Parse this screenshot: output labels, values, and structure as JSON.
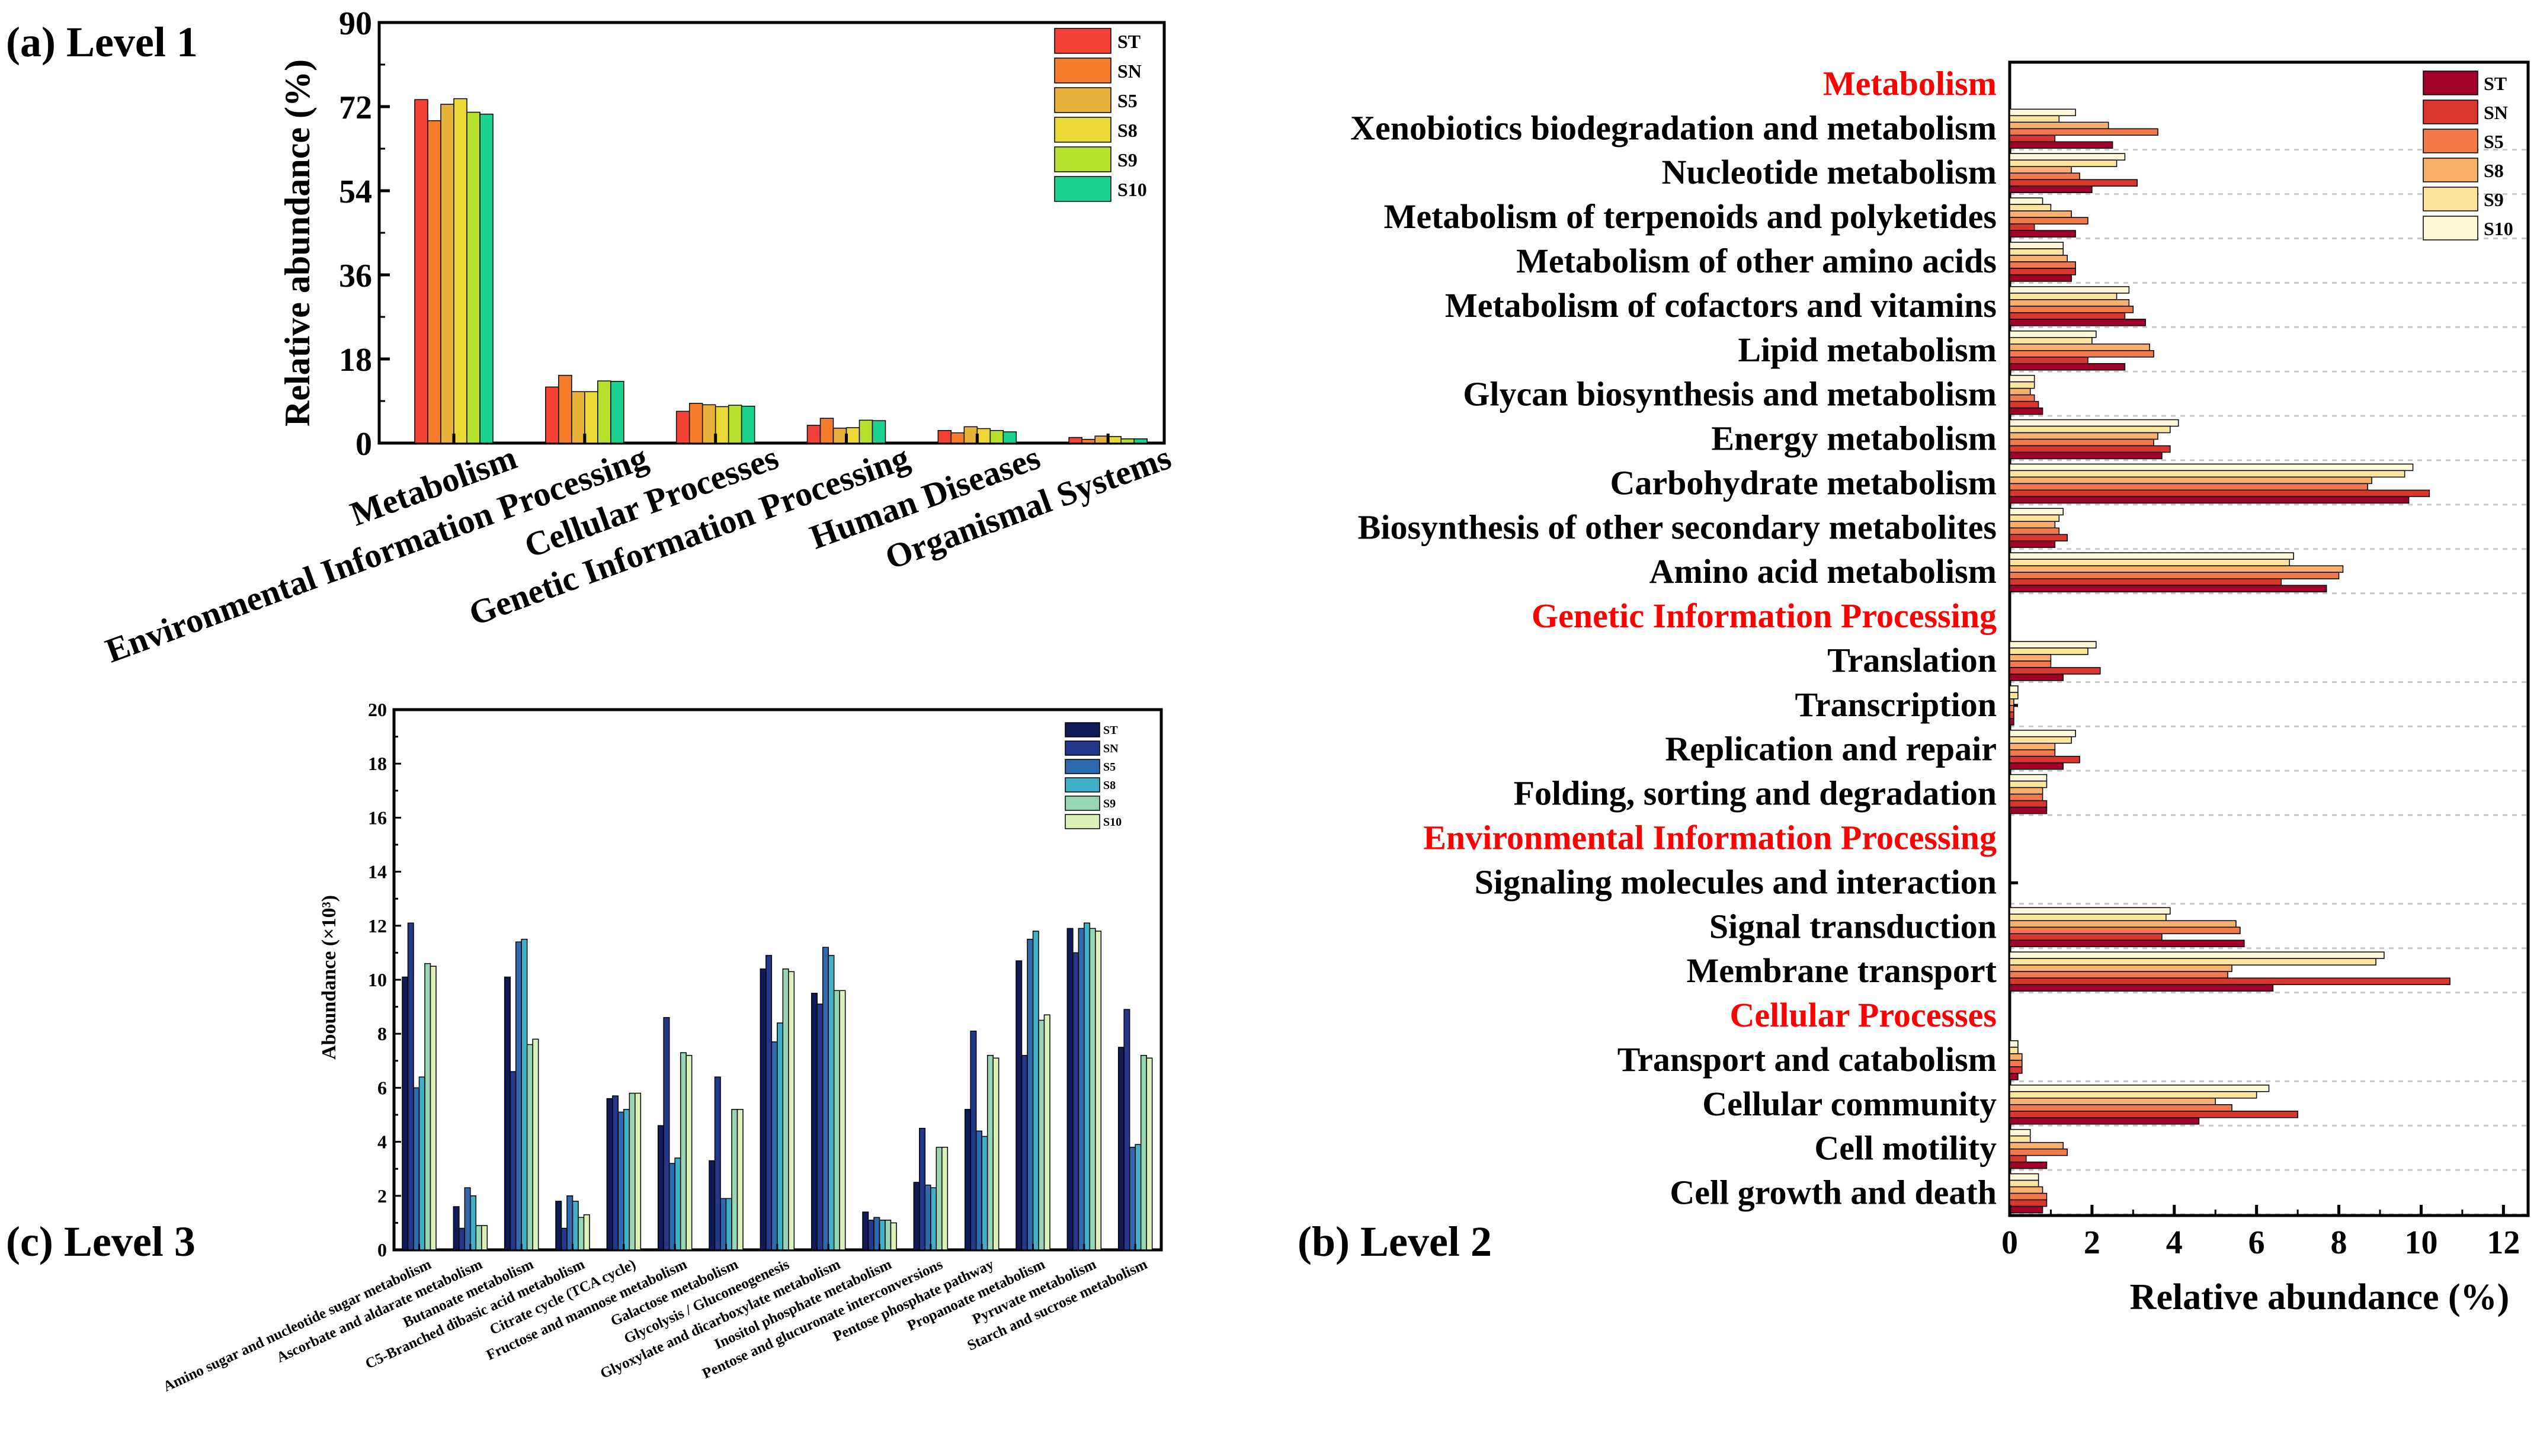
{
  "panel_labels": {
    "a": "(a) Level 1",
    "b": "(b) Level 2",
    "c": "(c) Level 3"
  },
  "colors": {
    "level1": [
      "#f44336",
      "#f57c2a",
      "#e8b13a",
      "#ecd835",
      "#b6df2e",
      "#1bd38e"
    ],
    "level2": [
      "#a1002b",
      "#d9362e",
      "#f27a4a",
      "#f8b06c",
      "#fde59b",
      "#fff8d6"
    ],
    "level3": [
      "#101a57",
      "#23388a",
      "#2f6ab1",
      "#3fb0c8",
      "#96d6b3",
      "#daf2b8"
    ]
  },
  "chart_data": [
    {
      "id": "level1",
      "type": "bar",
      "title": "(a) Level 1",
      "xlabel": "",
      "ylabel": "Relative abundance (%)",
      "ylim": [
        0,
        90
      ],
      "yticks": [
        "0",
        "18",
        "36",
        "54",
        "72",
        "90"
      ],
      "legend": "top-right",
      "categories": [
        "Metabolism",
        "Environmental Information Processing",
        "Cellular Processes",
        "Genetic Information Processing",
        "Human Diseases",
        "Organismal Systems"
      ],
      "series": [
        {
          "name": "ST",
          "values": [
            73.5,
            12.0,
            6.8,
            3.8,
            2.7,
            1.2
          ]
        },
        {
          "name": "SN",
          "values": [
            69.0,
            14.5,
            8.5,
            5.3,
            2.2,
            0.8
          ]
        },
        {
          "name": "S5",
          "values": [
            72.5,
            11.0,
            8.2,
            3.2,
            3.5,
            1.5
          ]
        },
        {
          "name": "S8",
          "values": [
            73.7,
            11.0,
            7.8,
            3.3,
            3.1,
            1.4
          ]
        },
        {
          "name": "S9",
          "values": [
            70.8,
            13.3,
            8.1,
            4.9,
            2.7,
            0.9
          ]
        },
        {
          "name": "S10",
          "values": [
            70.4,
            13.2,
            7.9,
            4.8,
            2.4,
            0.9
          ]
        }
      ]
    },
    {
      "id": "level2",
      "type": "bar",
      "orientation": "horizontal",
      "title": "(b) Level 2",
      "xlabel": "Relative abundance (%)",
      "ylabel": "",
      "xlim": [
        0,
        12.6
      ],
      "xticks": [
        "0",
        "2",
        "4",
        "6",
        "8",
        "10",
        "12"
      ],
      "legend": "top-right",
      "series_names": [
        "ST",
        "SN",
        "S5",
        "S8",
        "S9",
        "S10"
      ],
      "rows": [
        {
          "kind": "header",
          "label": "Metabolism"
        },
        {
          "kind": "cat",
          "label": "Xenobiotics biodegradation and metabolism",
          "values": [
            2.5,
            1.1,
            3.6,
            2.4,
            1.2,
            1.6
          ]
        },
        {
          "kind": "cat",
          "label": "Nucleotide metabolism",
          "values": [
            2.0,
            3.1,
            1.7,
            1.5,
            2.6,
            2.8
          ]
        },
        {
          "kind": "cat",
          "label": "Metabolism of terpenoids and polyketides",
          "values": [
            1.6,
            0.6,
            1.9,
            1.5,
            1.0,
            0.8
          ]
        },
        {
          "kind": "cat",
          "label": "Metabolism of other amino acids",
          "values": [
            1.5,
            1.6,
            1.6,
            1.4,
            1.3,
            1.3
          ]
        },
        {
          "kind": "cat",
          "label": "Metabolism of cofactors and vitamins",
          "values": [
            3.3,
            2.8,
            3.0,
            2.9,
            2.6,
            2.9
          ]
        },
        {
          "kind": "cat",
          "label": "Lipid metabolism",
          "values": [
            2.8,
            1.9,
            3.5,
            3.4,
            2.0,
            2.1
          ]
        },
        {
          "kind": "cat",
          "label": "Glycan biosynthesis and metabolism",
          "values": [
            0.8,
            0.7,
            0.6,
            0.5,
            0.6,
            0.6
          ]
        },
        {
          "kind": "cat",
          "label": "Energy metabolism",
          "values": [
            3.7,
            3.9,
            3.5,
            3.6,
            3.9,
            4.1
          ]
        },
        {
          "kind": "cat",
          "label": "Carbohydrate metabolism",
          "values": [
            9.7,
            10.2,
            8.7,
            8.8,
            9.6,
            9.8
          ]
        },
        {
          "kind": "cat",
          "label": "Biosynthesis of other secondary metabolites",
          "values": [
            1.1,
            1.4,
            1.2,
            1.1,
            1.2,
            1.3
          ]
        },
        {
          "kind": "cat",
          "label": "Amino acid metabolism",
          "values": [
            7.7,
            6.6,
            8.0,
            8.1,
            6.8,
            6.9
          ]
        },
        {
          "kind": "header",
          "label": "Genetic Information Processing"
        },
        {
          "kind": "cat",
          "label": "Translation",
          "values": [
            1.3,
            2.2,
            1.0,
            1.0,
            1.9,
            2.1
          ]
        },
        {
          "kind": "cat",
          "label": "Transcription",
          "values": [
            0.1,
            0.1,
            0.1,
            0.1,
            0.2,
            0.2
          ]
        },
        {
          "kind": "cat",
          "label": "Replication and repair",
          "values": [
            1.3,
            1.7,
            1.1,
            1.1,
            1.5,
            1.6
          ]
        },
        {
          "kind": "cat",
          "label": "Folding, sorting and degradation",
          "values": [
            0.9,
            0.9,
            0.8,
            0.8,
            0.9,
            0.9
          ]
        },
        {
          "kind": "header",
          "label": "Environmental Information Processing"
        },
        {
          "kind": "cat",
          "label": "Signaling molecules and interaction",
          "values": [
            0,
            0,
            0,
            0,
            0,
            0
          ]
        },
        {
          "kind": "cat",
          "label": "Signal transduction",
          "values": [
            5.7,
            3.7,
            5.6,
            5.5,
            3.8,
            3.9
          ]
        },
        {
          "kind": "cat",
          "label": "Membrane transport",
          "values": [
            6.4,
            10.7,
            5.3,
            5.4,
            8.9,
            9.1
          ]
        },
        {
          "kind": "header",
          "label": "Cellular Processes"
        },
        {
          "kind": "cat",
          "label": "Transport and catabolism",
          "values": [
            0.2,
            0.3,
            0.3,
            0.3,
            0.2,
            0.2
          ]
        },
        {
          "kind": "cat",
          "label": "Cellular community",
          "values": [
            4.6,
            7.0,
            5.4,
            5.0,
            6.0,
            6.3
          ]
        },
        {
          "kind": "cat",
          "label": "Cell motility",
          "values": [
            0.9,
            0.4,
            1.4,
            1.3,
            0.5,
            0.5
          ]
        },
        {
          "kind": "cat",
          "label": "Cell growth and death",
          "values": [
            0.8,
            0.9,
            0.9,
            0.8,
            0.7,
            0.7
          ]
        }
      ]
    },
    {
      "id": "level3",
      "type": "bar",
      "title": "(c) Level 3",
      "xlabel": "",
      "ylabel": "Aboundance (×10³)",
      "ylim": [
        0,
        20
      ],
      "yticks": [
        "0",
        "2",
        "4",
        "6",
        "8",
        "10",
        "12",
        "14",
        "16",
        "18",
        "20"
      ],
      "legend": "top-right",
      "categories": [
        "Amino sugar and nucleotide sugar metabolism",
        "Ascorbate and aldarate metabolism",
        "Butanoate metabolism",
        "C5-Branched dibasic acid metabolism",
        "Citrate cycle (TCA cycle)",
        "Fructose and mannose metabolism",
        "Galactose metabolism",
        "Glycolysis / Gluconeogenesis",
        "Glyoxylate and dicarboxylate metabolism",
        "Inositol phosphate metabolism",
        "Pentose and glucuronate interconversions",
        "Pentose phosphate pathway",
        "Propanoate metabolism",
        "Pyruvate metabolism",
        "Starch and sucrose metabolism"
      ],
      "series": [
        {
          "name": "ST",
          "values": [
            10.1,
            1.6,
            10.1,
            1.8,
            5.6,
            4.6,
            3.3,
            10.4,
            9.5,
            1.4,
            2.5,
            5.2,
            10.7,
            11.9,
            7.5
          ]
        },
        {
          "name": "SN",
          "values": [
            12.1,
            0.8,
            6.6,
            0.8,
            5.7,
            8.6,
            6.4,
            10.9,
            9.1,
            1.1,
            4.5,
            8.1,
            7.2,
            11.0,
            8.9
          ]
        },
        {
          "name": "S5",
          "values": [
            6.0,
            2.3,
            11.4,
            2.0,
            5.1,
            3.2,
            1.9,
            7.7,
            11.2,
            1.2,
            2.4,
            4.4,
            11.5,
            11.9,
            3.8
          ]
        },
        {
          "name": "S8",
          "values": [
            6.4,
            2.0,
            11.5,
            1.8,
            5.2,
            3.4,
            1.9,
            8.4,
            10.9,
            1.1,
            2.3,
            4.2,
            11.8,
            12.1,
            3.9
          ]
        },
        {
          "name": "S9",
          "values": [
            10.6,
            0.9,
            7.6,
            1.2,
            5.8,
            7.3,
            5.2,
            10.4,
            9.6,
            1.1,
            3.8,
            7.2,
            8.5,
            11.9,
            7.2
          ]
        },
        {
          "name": "S10",
          "values": [
            10.5,
            0.9,
            7.8,
            1.3,
            5.8,
            7.2,
            5.2,
            10.3,
            9.6,
            1.0,
            3.8,
            7.1,
            8.7,
            11.8,
            7.1
          ]
        }
      ]
    }
  ]
}
